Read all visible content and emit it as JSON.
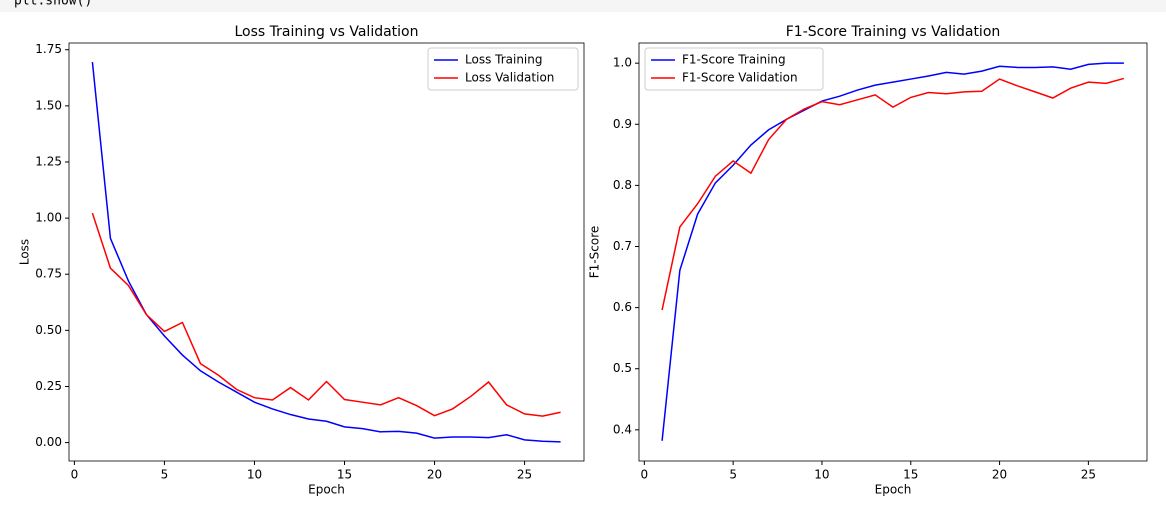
{
  "code": "plt.show()",
  "chart_data": [
    {
      "type": "line",
      "title": "Loss Training vs Validation",
      "x_label": "Epoch",
      "y_label": "Loss",
      "x": [
        1,
        2,
        3,
        4,
        5,
        6,
        7,
        8,
        9,
        10,
        11,
        12,
        13,
        14,
        15,
        16,
        17,
        18,
        19,
        20,
        21,
        22,
        23,
        24,
        25,
        26,
        27
      ],
      "series": [
        {
          "name": "Loss Training",
          "color": "blue",
          "values": [
            1.695,
            0.91,
            0.72,
            0.57,
            0.475,
            0.39,
            0.32,
            0.27,
            0.225,
            0.18,
            0.15,
            0.125,
            0.105,
            0.095,
            0.07,
            0.062,
            0.048,
            0.05,
            0.042,
            0.02,
            0.025,
            0.025,
            0.022,
            0.035,
            0.012,
            0.006,
            0.003
          ]
        },
        {
          "name": "Loss Validation",
          "color": "red",
          "values": [
            1.022,
            0.777,
            0.7,
            0.57,
            0.495,
            0.535,
            0.352,
            0.3,
            0.237,
            0.2,
            0.19,
            0.245,
            0.19,
            0.272,
            0.192,
            0.18,
            0.168,
            0.2,
            0.165,
            0.12,
            0.15,
            0.205,
            0.27,
            0.168,
            0.128,
            0.118,
            0.135
          ]
        }
      ],
      "xlim": [
        -0.3,
        28.3
      ],
      "xticks": [
        0,
        5,
        10,
        15,
        20,
        25
      ],
      "ylim": [
        -0.082,
        1.78
      ],
      "yticks": [
        {
          "value": 0,
          "label": "0.00"
        },
        {
          "value": 0.25,
          "label": "0.25"
        },
        {
          "value": 0.5,
          "label": "0.50"
        },
        {
          "value": 0.75,
          "label": "0.75"
        },
        {
          "value": 1,
          "label": "1.00"
        },
        {
          "value": 1.25,
          "label": "1.25"
        },
        {
          "value": 1.5,
          "label": "1.50"
        },
        {
          "value": 1.75,
          "label": "1.75"
        }
      ],
      "legend": "upper right"
    },
    {
      "type": "line",
      "title": "F1-Score Training vs Validation",
      "x_label": "Epoch",
      "y_label": "F1-Score",
      "x": [
        1,
        2,
        3,
        4,
        5,
        6,
        7,
        8,
        9,
        10,
        11,
        12,
        13,
        14,
        15,
        16,
        17,
        18,
        19,
        20,
        21,
        22,
        23,
        24,
        25,
        26,
        27
      ],
      "series": [
        {
          "name": "F1-Score Training",
          "color": "blue",
          "values": [
            0.382,
            0.661,
            0.753,
            0.804,
            0.833,
            0.866,
            0.891,
            0.908,
            0.923,
            0.938,
            0.946,
            0.956,
            0.964,
            0.969,
            0.974,
            0.979,
            0.985,
            0.982,
            0.987,
            0.995,
            0.993,
            0.993,
            0.994,
            0.99,
            0.998,
            1.0,
            1.0
          ]
        },
        {
          "name": "F1-Score Validation",
          "color": "red",
          "values": [
            0.596,
            0.732,
            0.77,
            0.815,
            0.84,
            0.82,
            0.875,
            0.908,
            0.925,
            0.937,
            0.932,
            0.94,
            0.948,
            0.928,
            0.944,
            0.952,
            0.95,
            0.953,
            0.954,
            0.974,
            0.963,
            0.953,
            0.943,
            0.959,
            0.969,
            0.967,
            0.975
          ]
        }
      ],
      "xlim": [
        -0.3,
        28.3
      ],
      "xticks": [
        0,
        5,
        10,
        15,
        20,
        25
      ],
      "ylim": [
        0.349,
        1.033
      ],
      "yticks": [
        0.4,
        0.5,
        0.6,
        0.7,
        0.8,
        0.9,
        {
          "value": 1,
          "label": "1.0"
        }
      ],
      "legend": "upper left"
    }
  ]
}
